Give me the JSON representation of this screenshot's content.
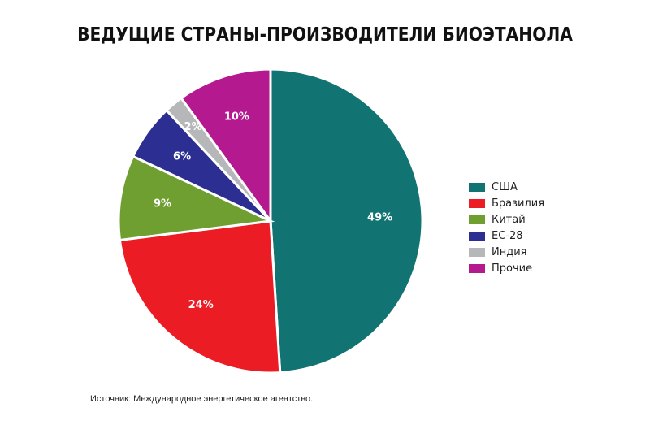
{
  "title": "ВЕДУЩИЕ СТРАНЫ-ПРОИЗВОДИТЕЛИ БИОЭТАНОЛА",
  "source": "Источник: Международное энергетическое агентство.",
  "chart_data": {
    "type": "pie",
    "title": "ВЕДУЩИЕ СТРАНЫ-ПРОИЗВОДИТЕЛИ БИОЭТАНОЛА",
    "legend_position": "right",
    "slices": [
      {
        "name": "США",
        "value": 49,
        "label": "49%",
        "color": "#127373"
      },
      {
        "name": "Бразилия",
        "value": 24,
        "label": "24%",
        "color": "#ec1c24"
      },
      {
        "name": "Китай",
        "value": 9,
        "label": "9%",
        "color": "#6f9f30"
      },
      {
        "name": "ЕС-28",
        "value": 6,
        "label": "6%",
        "color": "#2c2f91"
      },
      {
        "name": "Индия",
        "value": 2,
        "label": "2%",
        "color": "#b6b7b9"
      },
      {
        "name": "Прочие",
        "value": 10,
        "label": "10%",
        "color": "#b5198f"
      }
    ]
  }
}
